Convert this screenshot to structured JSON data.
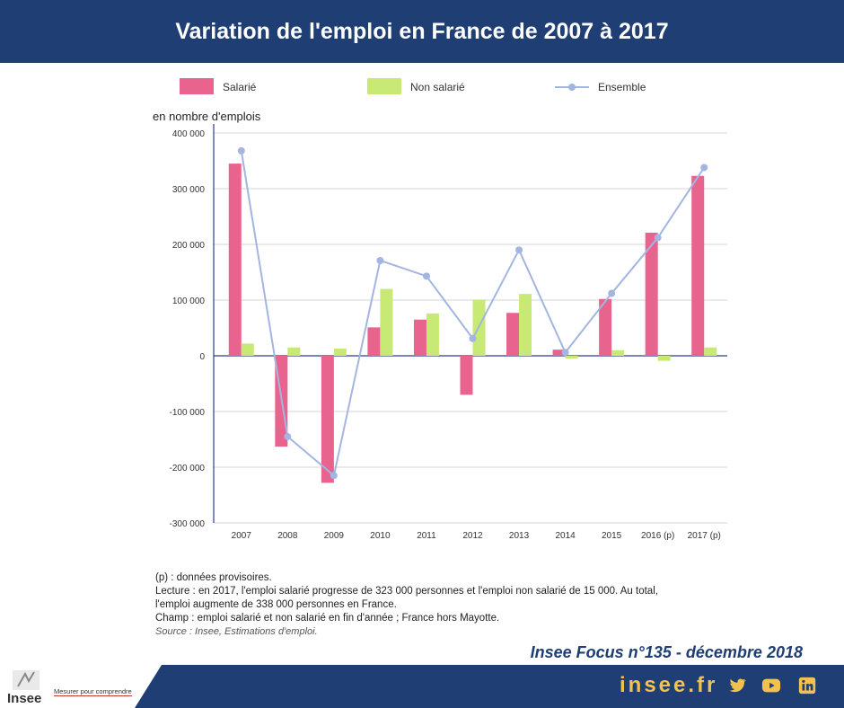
{
  "header": {
    "title": "Variation de l'emploi en France de 2007 à 2017"
  },
  "chart_data": {
    "type": "bar",
    "ylabel": "en nombre d'emplois",
    "ylim": [
      -300000,
      400000
    ],
    "yticks": [
      400000,
      300000,
      200000,
      100000,
      0,
      -100000,
      -200000,
      -300000
    ],
    "ytick_labels": [
      "400 000",
      "300 000",
      "200 000",
      "100 000",
      "0",
      "-100 000",
      "-200 000",
      "-300 000"
    ],
    "categories": [
      "2007",
      "2008",
      "2009",
      "2010",
      "2011",
      "2012",
      "2013",
      "2014",
      "2015",
      "2016 (p)",
      "2017 (p)"
    ],
    "series": [
      {
        "name": "Salarié",
        "type": "bar",
        "color": "#e8638d",
        "values": [
          345000,
          -163000,
          -228000,
          51000,
          65000,
          -70000,
          77000,
          11000,
          102000,
          221000,
          323000
        ]
      },
      {
        "name": "Non salarié",
        "type": "bar",
        "color": "#c8ea74",
        "values": [
          22000,
          15000,
          13000,
          120000,
          76000,
          101000,
          111000,
          -5000,
          10000,
          -9000,
          15000
        ]
      },
      {
        "name": "Ensemble",
        "type": "line",
        "color": "#a3b5e0",
        "values": [
          368000,
          -145000,
          -215000,
          171000,
          143000,
          31000,
          190000,
          6000,
          112000,
          212000,
          338000
        ]
      }
    ],
    "legend_position": "top",
    "grid": true
  },
  "notes": {
    "line1": "(p) : données provisoires.",
    "line2": "Lecture : en 2017, l'emploi salarié progresse de 323 000 personnes et l'emploi non salarié de 15 000. Au total,",
    "line3": "l'emploi augmente de 338 000 personnes en France.",
    "line4": "Champ : emploi salarié et non salarié en fin d'année ; France hors Mayotte.",
    "source": "Source : Insee, Estimations d'emploi."
  },
  "publication": "Insee Focus n°135 - décembre 2018",
  "footer": {
    "logo": "Insee",
    "tagline": "Mesurer pour comprendre",
    "site": "insee.fr",
    "accent": "#f2c14e",
    "band_color": "#1f3e73",
    "social": [
      "twitter-icon",
      "youtube-icon",
      "linkedin-icon"
    ]
  }
}
